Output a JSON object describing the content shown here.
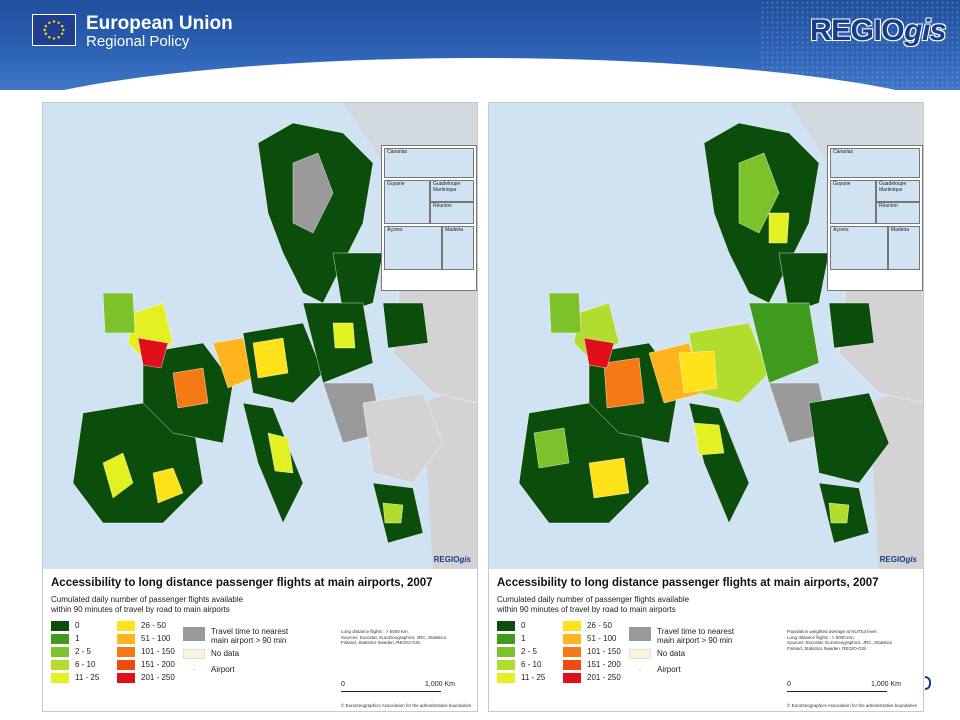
{
  "header": {
    "org_title": "European Union",
    "org_subtitle": "Regional Policy",
    "logo_main": "REGIO",
    "logo_italic": "gis",
    "flag_icon": "eu-flag-icon"
  },
  "panels": [
    {
      "map_logo_main": "REGIO",
      "map_logo_italic": "gis",
      "insets": [
        "Canarias",
        "Guyane",
        "Guadeloupe Martinique",
        "Réunion",
        "Açores",
        "Madeira"
      ],
      "title": "Accessibility to long distance passenger flights at main airports, 2007",
      "subtitle_line1": "Cumulated daily number of passenger flights available",
      "subtitle_line2": "within 90 minutes of travel by road to main airports",
      "notes": [
        "Long distance flights : > 5000 Km.",
        "Sources: Eurostat, EuroGeographics, JRC, Statistics",
        "Finland, Statistics Sweden, REGIO-GIS."
      ],
      "scale_start": "0",
      "scale_end": "1,000 Km",
      "copyright": "© EuroGeographics Association for the administrative boundaries"
    },
    {
      "map_logo_main": "REGIO",
      "map_logo_italic": "gis",
      "insets": [
        "Canarias",
        "Guyane",
        "Guadeloupe Martinique",
        "Réunion",
        "Açores",
        "Madeira"
      ],
      "title": "Accessibility to long distance passenger flights at main airports, 2007",
      "subtitle_line1": "Cumulated daily number of passenger flights available",
      "subtitle_line2": "within 90 minutes of travel by road to main airports",
      "notes": [
        "Population weighted average at NUTS3 level.",
        "Long distance flights : > 5000 Km.",
        "Sources: Eurostat, EuroGeographics, JRC, Statistics",
        "Finland, Statistics Sweden, REGIO-GIS."
      ],
      "scale_start": "0",
      "scale_end": "1,000 Km",
      "copyright": "© EuroGeographics Association for the administrative boundaries"
    }
  ],
  "legend": {
    "classes": [
      {
        "label": "0",
        "color": "#0b4d0b"
      },
      {
        "label": "1",
        "color": "#3f9a1e"
      },
      {
        "label": "2 - 5",
        "color": "#7cc22a"
      },
      {
        "label": "6 - 10",
        "color": "#b2dc2e"
      },
      {
        "label": "11 - 25",
        "color": "#e3f022"
      },
      {
        "label": "26 - 50",
        "color": "#ffe21a"
      },
      {
        "label": "51 - 100",
        "color": "#ffb41e"
      },
      {
        "label": "101 - 150",
        "color": "#f57a16"
      },
      {
        "label": "151 - 200",
        "color": "#ee4a12"
      },
      {
        "label": "201 - 250",
        "color": "#e0101a"
      }
    ],
    "gray_label_line1": "Travel time to nearest",
    "gray_label_line2": "main airport > 90 min",
    "gray_color": "#9a9a9a",
    "nodata_label": "No data",
    "nodata_color": "#fbf3dc",
    "airport_label": "Airport"
  },
  "colors": {
    "sea": "#cfe3f3",
    "non_eu_land": "#d3d3d3",
    "banner": "#2e63b5"
  }
}
